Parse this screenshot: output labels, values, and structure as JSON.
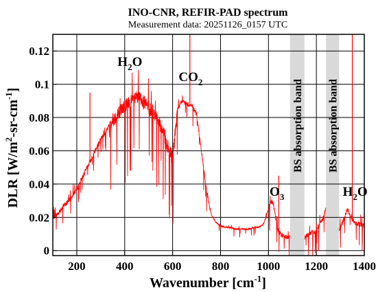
{
  "chart_data": {
    "type": "line",
    "title": "INO-CNR, REFIR-PAD spectrum",
    "subtitle": "Measurement data: 20251126_0157 UTC",
    "xlabel": {
      "main": "Wavenumber [cm",
      "sup": "-1",
      "end": "]"
    },
    "ylabel": {
      "a": "DLR [W/m",
      "sup1": "2",
      "b": "-sr-cm",
      "sup2": "-1",
      "c": "]"
    },
    "xlim": [
      100,
      1400
    ],
    "ylim": [
      -0.003,
      0.13
    ],
    "xticks": [
      200,
      400,
      600,
      800,
      1000,
      1200,
      1400
    ],
    "xtick_labels": [
      "200",
      "400",
      "600",
      "800",
      "1000",
      "1200",
      "1400"
    ],
    "yticks": [
      0,
      0.02,
      0.04,
      0.06,
      0.08,
      0.1,
      0.12
    ],
    "ytick_labels": [
      "0",
      "0.02",
      "0.04",
      "0.06",
      "0.08",
      "0.1",
      "0.12"
    ],
    "grid": true,
    "line_color": "#ff0000",
    "band_color": "#d9d9d9",
    "shaded_bands": [
      {
        "x": [
          1090,
          1150
        ],
        "label": "BS absorption band"
      },
      {
        "x": [
          1240,
          1295
        ],
        "label": "BS absorption band"
      }
    ],
    "annotations": [
      {
        "text": "H",
        "sub": "2",
        "tail": "O",
        "x": 370,
        "y": 0.111
      },
      {
        "text": "CO",
        "sub": "2",
        "tail": "",
        "x": 625,
        "y": 0.102
      },
      {
        "text": "O",
        "sub": "3",
        "tail": "",
        "x": 1005,
        "y": 0.033
      },
      {
        "text": "H",
        "sub": "2",
        "tail": "O",
        "x": 1310,
        "y": 0.033
      }
    ],
    "series": [
      {
        "x": [
          100,
          120,
          140,
          160,
          180,
          200,
          220,
          240,
          260,
          280,
          300,
          320,
          340,
          360,
          380,
          400,
          420,
          440,
          460,
          480,
          500,
          520,
          540,
          560,
          580,
          600,
          620,
          640,
          660,
          680,
          700,
          720,
          740,
          760,
          780,
          800,
          820,
          840,
          860,
          880,
          900,
          920,
          940,
          960,
          980,
          1000,
          1010,
          1020,
          1030,
          1040,
          1050,
          1060,
          1070,
          1080,
          1090,
          1150,
          1170,
          1190,
          1210,
          1230,
          1240,
          1295,
          1310,
          1330,
          1345,
          1360,
          1380,
          1400
        ],
        "values": [
          0.02,
          0.022,
          0.026,
          0.029,
          0.033,
          0.037,
          0.043,
          0.049,
          0.055,
          0.061,
          0.067,
          0.071,
          0.077,
          0.08,
          0.084,
          0.087,
          0.089,
          0.091,
          0.092,
          0.089,
          0.086,
          0.083,
          0.078,
          0.071,
          0.062,
          0.055,
          0.085,
          0.09,
          0.088,
          0.087,
          0.082,
          0.06,
          0.038,
          0.022,
          0.017,
          0.015,
          0.014,
          0.014,
          0.013,
          0.013,
          0.013,
          0.013,
          0.014,
          0.014,
          0.016,
          0.025,
          0.03,
          0.028,
          0.02,
          0.012,
          0.01,
          0.009,
          0.008,
          0.008,
          0.008,
          0.008,
          0.01,
          0.011,
          0.015,
          0.02,
          0.025,
          0.012,
          0.017,
          0.025,
          0.02,
          0.017,
          0.016,
          0.015
        ]
      }
    ]
  }
}
